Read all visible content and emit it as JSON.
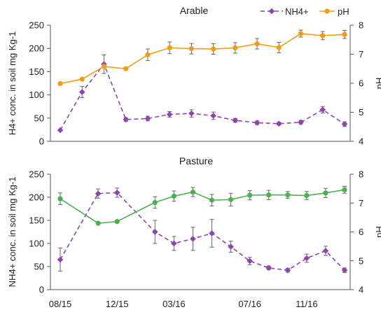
{
  "chart_data": [
    {
      "type": "line",
      "title": "Arable",
      "ylabel_left": "H4+ conc. in soil mg Kg-1",
      "ylabel_right": "pH",
      "ylim_left": [
        0,
        250
      ],
      "ylim_right": [
        4,
        8
      ],
      "yticks_left": [
        "0",
        "50",
        "100",
        "150",
        "200",
        "250"
      ],
      "yticks_right": [
        "4",
        "5",
        "6",
        "7",
        "8"
      ],
      "legend_position": "top-right",
      "colors": {
        "nh4": "#8e44ad",
        "ph": "#f39c12"
      },
      "series": [
        {
          "name": "NH4+",
          "axis": "left",
          "style": "dashed-diamond",
          "x": [
            0,
            1,
            2,
            3,
            4,
            5,
            6,
            7,
            8,
            9,
            10,
            11,
            12,
            13
          ],
          "values": [
            24,
            106,
            166,
            47,
            49,
            58,
            60,
            55,
            45,
            40,
            38,
            41,
            68,
            37
          ],
          "errors": [
            0,
            12,
            20,
            4,
            5,
            6,
            8,
            8,
            4,
            4,
            3,
            4,
            7,
            5
          ]
        },
        {
          "name": "pH",
          "axis": "right",
          "style": "solid-circle",
          "x": [
            0,
            1,
            2,
            3,
            4,
            5,
            6,
            7,
            8,
            9,
            10,
            11,
            12,
            13
          ],
          "values": [
            5.99,
            6.14,
            6.58,
            6.5,
            6.98,
            7.22,
            7.19,
            7.18,
            7.22,
            7.36,
            7.23,
            7.71,
            7.64,
            7.68
          ],
          "errors": [
            0,
            0,
            0,
            0,
            0.2,
            0.2,
            0.18,
            0.18,
            0.18,
            0.18,
            0.18,
            0.12,
            0.14,
            0.14
          ]
        }
      ]
    },
    {
      "type": "line",
      "title": "Pasture",
      "ylabel_left": "NH4+ conc. in soil mg Kg-1",
      "ylabel_right": "pH",
      "ylim_left": [
        0,
        250
      ],
      "ylim_right": [
        4,
        8
      ],
      "yticks_left": [
        "0",
        "50",
        "100",
        "150",
        "200",
        "250"
      ],
      "yticks_right": [
        "4",
        "5",
        "6",
        "7",
        "8"
      ],
      "xtick_labels": [
        "08/15",
        "12/15",
        "03/16",
        "07/16",
        "11/16"
      ],
      "xtick_positions": [
        0,
        3,
        6,
        10,
        13
      ],
      "colors": {
        "nh4": "#8e44ad",
        "ph": "#4caf50"
      },
      "series": [
        {
          "name": "NH4+",
          "axis": "left",
          "style": "dashed-diamond",
          "x": [
            0,
            2,
            3,
            5,
            6,
            7,
            8,
            9,
            10,
            11,
            12,
            13,
            14,
            15
          ],
          "values": [
            65,
            208,
            210,
            125,
            100,
            110,
            122,
            93,
            62,
            47,
            42,
            68,
            84,
            42
          ],
          "errors": [
            25,
            10,
            10,
            25,
            15,
            25,
            30,
            12,
            8,
            4,
            4,
            9,
            10,
            5
          ]
        },
        {
          "name": "pH",
          "axis": "right",
          "style": "solid-circle",
          "x": [
            0,
            2,
            3,
            5,
            6,
            7,
            8,
            9,
            10,
            11,
            12,
            13,
            14,
            15
          ],
          "values": [
            7.15,
            6.3,
            6.36,
            7.02,
            7.24,
            7.38,
            7.1,
            7.12,
            7.27,
            7.28,
            7.28,
            7.26,
            7.35,
            7.46
          ],
          "errors": [
            0.2,
            0,
            0,
            0.2,
            0.18,
            0.16,
            0.2,
            0.22,
            0.16,
            0.16,
            0.12,
            0.14,
            0.16,
            0.12
          ]
        }
      ]
    }
  ]
}
